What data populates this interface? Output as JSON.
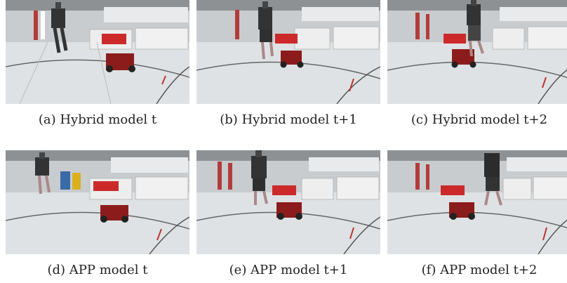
{
  "figures": [
    {
      "caption": "(a) Hybrid model t"
    },
    {
      "caption": "(b) Hybrid model t+1"
    },
    {
      "caption": "(c) Hybrid model t+2"
    },
    {
      "caption": "(d) APP model t"
    },
    {
      "caption": "(e) APP model t+1"
    },
    {
      "caption": "(f) APP model t+2"
    }
  ]
}
